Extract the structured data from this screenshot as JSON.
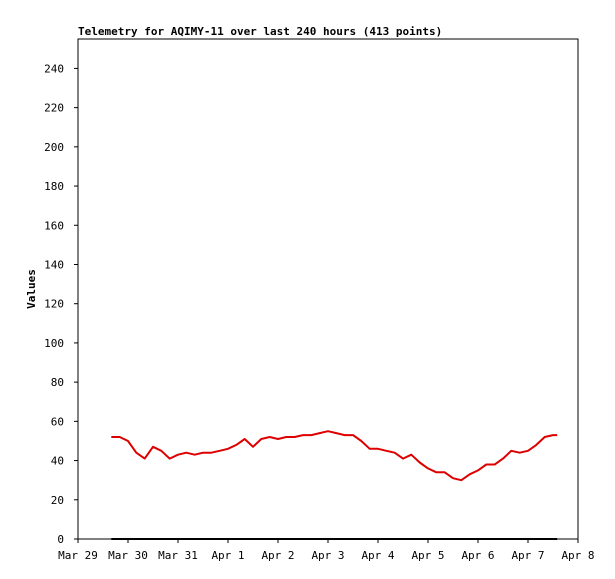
{
  "chart_data": {
    "type": "line",
    "title": "Telemetry for AQIMY-11 over last 240 hours (413 points)",
    "xlabel": "",
    "ylabel": "Values",
    "ylim": [
      0,
      255
    ],
    "yticks": [
      0,
      20,
      40,
      60,
      80,
      100,
      120,
      140,
      160,
      180,
      200,
      220,
      240
    ],
    "xlim_days": [
      "Mar 29",
      "Apr 8"
    ],
    "xtick_labels": [
      "Mar 29",
      "Mar 30",
      "Mar 31",
      "Apr 1",
      "Apr 2",
      "Apr 3",
      "Apr 4",
      "Apr 5",
      "Apr 6",
      "Apr 7",
      "Apr 8"
    ],
    "grid": false,
    "legend": "none",
    "series": [
      {
        "color": "#dd0000",
        "x": [
          "Mar 29 16:00",
          "Mar 29 20:00",
          "Mar 30 00:00",
          "Mar 30 04:00",
          "Mar 30 08:00",
          "Mar 30 12:00",
          "Mar 30 16:00",
          "Mar 30 20:00",
          "Mar 31 00:00",
          "Mar 31 04:00",
          "Mar 31 08:00",
          "Mar 31 12:00",
          "Mar 31 16:00",
          "Mar 31 20:00",
          "Apr 1 00:00",
          "Apr 1 04:00",
          "Apr 1 08:00",
          "Apr 1 12:00",
          "Apr 1 16:00",
          "Apr 1 20:00",
          "Apr 2 00:00",
          "Apr 2 04:00",
          "Apr 2 08:00",
          "Apr 2 12:00",
          "Apr 2 16:00",
          "Apr 2 20:00",
          "Apr 3 00:00",
          "Apr 3 04:00",
          "Apr 3 08:00",
          "Apr 3 12:00",
          "Apr 3 16:00",
          "Apr 3 20:00",
          "Apr 4 00:00",
          "Apr 4 04:00",
          "Apr 4 08:00",
          "Apr 4 12:00",
          "Apr 4 16:00",
          "Apr 4 20:00",
          "Apr 5 00:00",
          "Apr 5 04:00",
          "Apr 5 08:00",
          "Apr 5 12:00",
          "Apr 5 16:00",
          "Apr 5 20:00",
          "Apr 6 00:00",
          "Apr 6 04:00",
          "Apr 6 08:00",
          "Apr 6 12:00",
          "Apr 6 16:00",
          "Apr 6 20:00",
          "Apr 7 00:00",
          "Apr 7 04:00",
          "Apr 7 08:00",
          "Apr 7 12:00",
          "Apr 7 14:00"
        ],
        "values": [
          52,
          52,
          50,
          44,
          41,
          47,
          45,
          41,
          43,
          44,
          43,
          44,
          44,
          45,
          46,
          48,
          51,
          47,
          51,
          52,
          51,
          52,
          52,
          53,
          53,
          54,
          55,
          54,
          53,
          53,
          50,
          46,
          46,
          45,
          44,
          41,
          43,
          39,
          36,
          34,
          34,
          31,
          30,
          33,
          35,
          38,
          38,
          41,
          45,
          44,
          45,
          48,
          52,
          53,
          53
        ]
      },
      {
        "color": "#000000",
        "x": [
          "Mar 29 16:00",
          "Apr 7 14:00"
        ],
        "values": [
          0,
          0
        ]
      }
    ]
  }
}
